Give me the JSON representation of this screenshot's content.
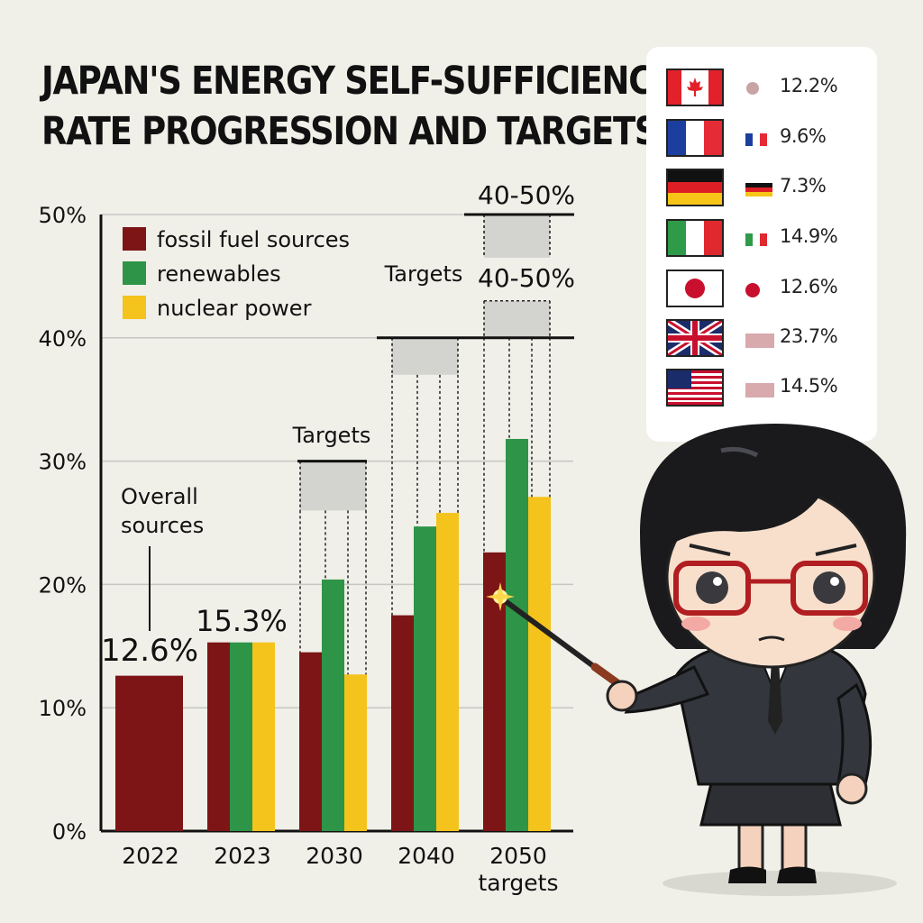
{
  "title": {
    "line1": "JAPAN'S ENERGY SELF-SUFFICIENCY",
    "line2": "RATE PROGRESSION AND TARGETS"
  },
  "chart_data": {
    "type": "bar",
    "title": "JAPAN'S ENERGY SELF-SUFFICIENCY RATE PROGRESSION AND TARGETS",
    "categories": [
      "2022",
      "2023",
      "2030",
      "2040",
      "2050 targets"
    ],
    "y_ticks": [
      "0%",
      "10%",
      "20%",
      "30%",
      "40%",
      "50%"
    ],
    "ylim": [
      0,
      50
    ],
    "grid": true,
    "legend_position": "top-left",
    "series": [
      {
        "name": "fossil fuel sources",
        "color": "#7d1517",
        "values": [
          12.6,
          15.3,
          14.5,
          17.5,
          22.6
        ]
      },
      {
        "name": "renewables",
        "color": "#2e9448",
        "values": [
          null,
          15.3,
          20.4,
          24.7,
          31.8
        ]
      },
      {
        "name": "nuclear power",
        "color": "#f4c31c",
        "values": [
          null,
          15.3,
          12.7,
          25.8,
          27.1
        ]
      }
    ],
    "target_ranges": [
      {
        "category": "2030",
        "label": "Targets",
        "low": 26,
        "high": 30
      },
      {
        "category": "2040",
        "label": "Targets",
        "low": 37,
        "high": 40
      },
      {
        "category": "2050 targets",
        "label": "40-50%",
        "low": 40,
        "high": 43
      },
      {
        "category": "2050 targets",
        "label": "40-50%",
        "low": 46.5,
        "high": 50
      }
    ],
    "annotations": [
      {
        "text": "Overall sources",
        "line1": "Overall",
        "line2": "sources"
      },
      {
        "text": "12.6%"
      },
      {
        "text": "15.3%"
      }
    ]
  },
  "flags": [
    {
      "country": "canada-flag",
      "value": "12.2%"
    },
    {
      "country": "france-flag",
      "value": "9.6%"
    },
    {
      "country": "germany-flag",
      "value": "7.3%"
    },
    {
      "country": "italy-flag",
      "value": "14.9%"
    },
    {
      "country": "japan-flag",
      "value": "12.6%"
    },
    {
      "country": "uk-flag",
      "value": "23.7%"
    },
    {
      "country": "usa-flag",
      "value": "14.5%"
    }
  ]
}
